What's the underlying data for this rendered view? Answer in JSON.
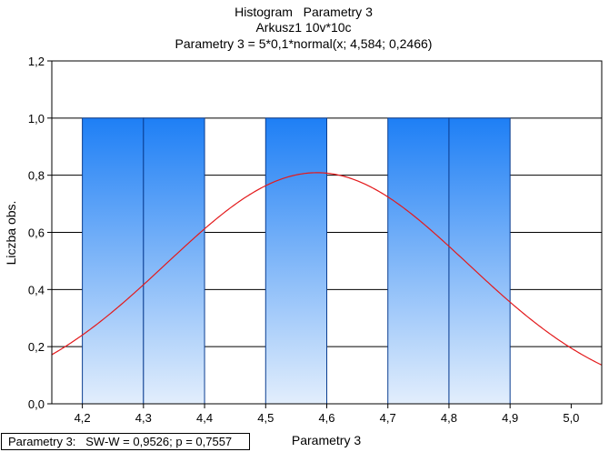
{
  "chart_data": {
    "type": "bar",
    "title": "Histogram   Parametry 3",
    "subtitle": "Arkusz1 10v*10c",
    "fit_label": "Parametry 3 = 5*0,1*normal(x; 4,584; 0,2466)",
    "xlabel": "Parametry 3",
    "ylabel": "Liczba obs.",
    "xlim": [
      4.15,
      5.05
    ],
    "ylim": [
      0,
      1.2
    ],
    "x_ticks": [
      "4,2",
      "4,3",
      "4,4",
      "4,5",
      "4,6",
      "4,7",
      "4,8",
      "4,9",
      "5,0"
    ],
    "x_tick_values": [
      4.2,
      4.3,
      4.4,
      4.5,
      4.6,
      4.7,
      4.8,
      4.9,
      5.0
    ],
    "y_ticks": [
      "0,0",
      "0,2",
      "0,4",
      "0,6",
      "0,8",
      "1,0",
      "1,2"
    ],
    "y_tick_values": [
      0,
      0.2,
      0.4,
      0.6,
      0.8,
      1.0,
      1.2
    ],
    "bins": [
      {
        "from": 4.2,
        "to": 4.3,
        "count": 1
      },
      {
        "from": 4.3,
        "to": 4.4,
        "count": 1
      },
      {
        "from": 4.5,
        "to": 4.6,
        "count": 1
      },
      {
        "from": 4.7,
        "to": 4.8,
        "count": 1
      },
      {
        "from": 4.8,
        "to": 4.9,
        "count": 1
      }
    ],
    "fit": {
      "n": 5,
      "bin_width": 0.1,
      "mean": 4.584,
      "sd": 0.2466
    },
    "grid": "horizontal",
    "colors": {
      "bar_top": "#1e7ff5",
      "bar_bottom": "#e2eefc",
      "bar_edge": "#0a3d91",
      "fit_line": "#e31a1c",
      "grid": "#000000"
    },
    "stats_text": "Parametry 3:   SW-W = 0,9526; p = 0,7557"
  }
}
